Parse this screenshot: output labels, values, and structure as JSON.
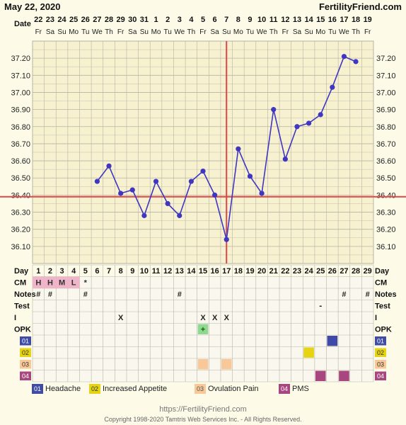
{
  "header": {
    "date_text": "May 22, 2020",
    "site": "FertilityFriend.com"
  },
  "labels": {
    "date": "Date",
    "day": "Day",
    "cm": "CM",
    "notes": "Notes",
    "test": "Test",
    "intercourse": "I",
    "opk": "OPK"
  },
  "chart_data": {
    "type": "line",
    "y_ticks": [
      "37.20",
      "37.10",
      "37.00",
      "36.90",
      "36.80",
      "36.70",
      "36.60",
      "36.50",
      "36.40",
      "36.30",
      "36.20",
      "36.10"
    ],
    "ylim": [
      36.0,
      37.3
    ],
    "date_numbers": [
      "22",
      "23",
      "24",
      "25",
      "26",
      "27",
      "28",
      "29",
      "30",
      "31",
      "1",
      "2",
      "3",
      "4",
      "5",
      "6",
      "7",
      "8",
      "9",
      "10",
      "11",
      "12",
      "13",
      "14",
      "15",
      "16",
      "17",
      "18",
      "19"
    ],
    "weekdays": [
      "Fr",
      "Sa",
      "Su",
      "Mo",
      "Tu",
      "We",
      "Th",
      "Fr",
      "Sa",
      "Su",
      "Mo",
      "Tu",
      "We",
      "Th",
      "Fr",
      "Sa",
      "Su",
      "Mo",
      "Tu",
      "We",
      "Th",
      "Fr",
      "Sa",
      "Su",
      "Mo",
      "Tu",
      "We",
      "Th",
      "Fr"
    ],
    "cycle_days": [
      "1",
      "2",
      "3",
      "4",
      "5",
      "6",
      "7",
      "8",
      "9",
      "10",
      "11",
      "12",
      "13",
      "14",
      "15",
      "16",
      "17",
      "18",
      "19",
      "20",
      "21",
      "22",
      "23",
      "24",
      "25",
      "26",
      "27",
      "28",
      "29"
    ],
    "temperatures": [
      {
        "day": 6,
        "temp": 36.48
      },
      {
        "day": 7,
        "temp": 36.57
      },
      {
        "day": 8,
        "temp": 36.41
      },
      {
        "day": 9,
        "temp": 36.43
      },
      {
        "day": 10,
        "temp": 36.28
      },
      {
        "day": 11,
        "temp": 36.48
      },
      {
        "day": 12,
        "temp": 36.35
      },
      {
        "day": 13,
        "temp": 36.28
      },
      {
        "day": 14,
        "temp": 36.48
      },
      {
        "day": 15,
        "temp": 36.54
      },
      {
        "day": 16,
        "temp": 36.4
      },
      {
        "day": 17,
        "temp": 36.14
      },
      {
        "day": 18,
        "temp": 36.67
      },
      {
        "day": 19,
        "temp": 36.51
      },
      {
        "day": 20,
        "temp": 36.41
      },
      {
        "day": 21,
        "temp": 36.9
      },
      {
        "day": 22,
        "temp": 36.61
      },
      {
        "day": 23,
        "temp": 36.8
      },
      {
        "day": 24,
        "temp": 36.82
      },
      {
        "day": 25,
        "temp": 36.87
      },
      {
        "day": 26,
        "temp": 37.03
      },
      {
        "day": 27,
        "temp": 37.21
      },
      {
        "day": 28,
        "temp": 37.18
      }
    ],
    "coverline": {
      "temp": 36.39
    },
    "ovulation_day": 17,
    "cm": [
      {
        "day": 1,
        "value": "H"
      },
      {
        "day": 2,
        "value": "H"
      },
      {
        "day": 3,
        "value": "M"
      },
      {
        "day": 4,
        "value": "L"
      },
      {
        "day": 5,
        "value": "*"
      }
    ],
    "notes_days": [
      1,
      2,
      5,
      13,
      27,
      29
    ],
    "notes_mark": "#",
    "test": [
      {
        "day": 25,
        "value": "-"
      }
    ],
    "intercourse_days": [
      8,
      15,
      16,
      17
    ],
    "intercourse_mark": "X",
    "opk": [
      {
        "day": 15,
        "value": "+"
      }
    ],
    "symptoms": [
      {
        "code": "01",
        "label": "Headache",
        "color": "#3f4ba5",
        "row_fill": "#4049a8",
        "days": [
          26
        ]
      },
      {
        "code": "02",
        "label": "Increased Appetite",
        "color": "#e6d414",
        "row_fill": "#e6d414",
        "days": [
          24
        ]
      },
      {
        "code": "03",
        "label": "Ovulation Pain",
        "color": "#f9c898",
        "row_fill": "#f9c898",
        "days": [
          15,
          17
        ]
      },
      {
        "code": "04",
        "label": "PMS",
        "color": "#a8467f",
        "row_fill": "#a8467f",
        "days": [
          25,
          27
        ]
      }
    ]
  },
  "colors": {
    "line": "#3f36c2",
    "coverline": "#d94747",
    "grid": "#b5b5a5",
    "cm_fill": "#f0b5c8"
  },
  "footer": {
    "url": "https://FertilityFriend.com",
    "copyright": "Copyright 1998-2020 Tamtris Web Services Inc. - All Rights Reserved."
  }
}
